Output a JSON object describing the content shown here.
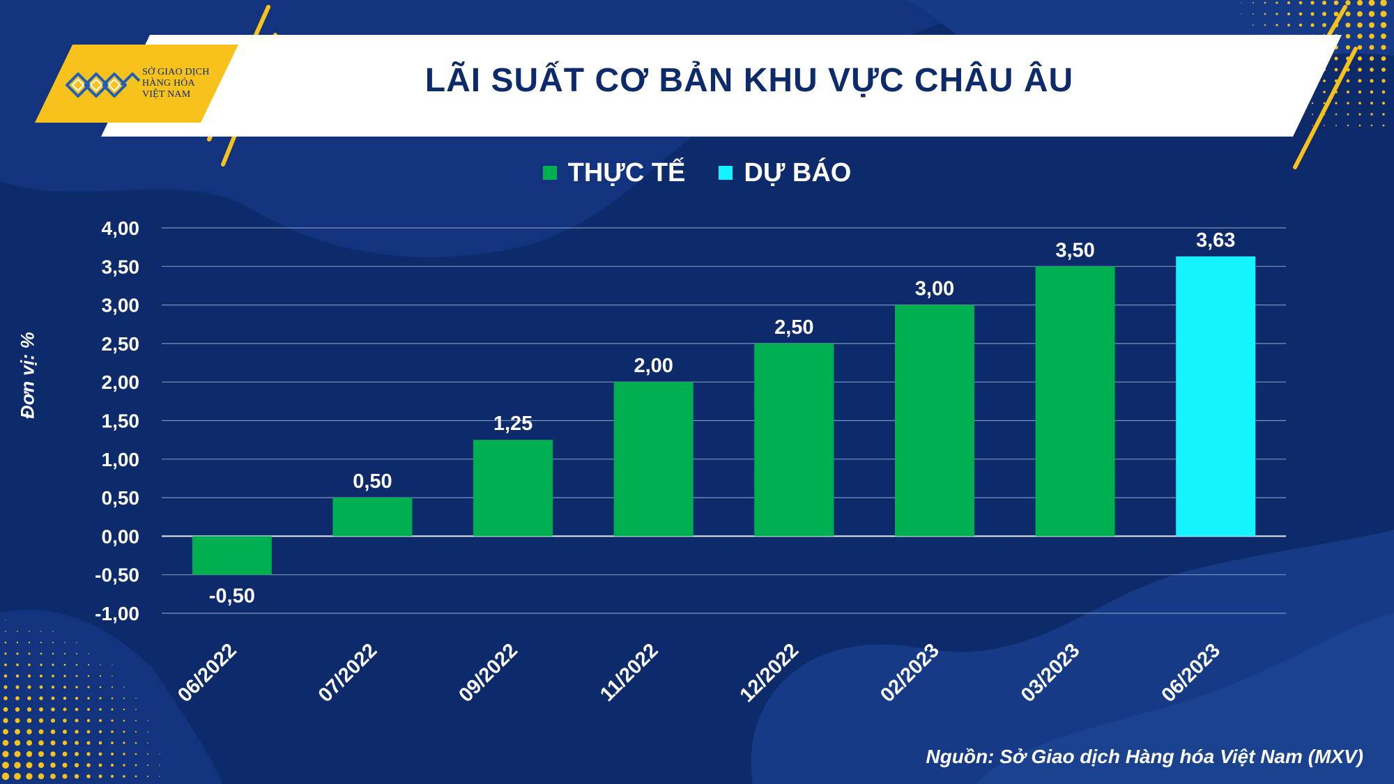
{
  "logo": {
    "line1": "SỞ GIAO DỊCH",
    "line2": "HÀNG HÓA",
    "line3": "VIỆT NAM",
    "icon": "mxv-logo-icon"
  },
  "title": "LÃI SUẤT CƠ BẢN KHU VỰC CHÂU ÂU",
  "ylabel": "Đơn vị: %",
  "source": "Nguồn: Sở Giao dịch Hàng hóa Việt Nam (MXV)",
  "colors": {
    "background": "#0d2a6b",
    "actual": "#00b050",
    "forecast": "#14f1ff",
    "accent": "#f6c21b"
  },
  "chart_data": {
    "type": "bar",
    "categories": [
      "06/2022",
      "07/2022",
      "09/2022",
      "11/2022",
      "12/2022",
      "02/2023",
      "03/2023",
      "06/2023"
    ],
    "series": [
      {
        "name": "THỰC TẾ",
        "values": [
          -0.5,
          0.5,
          1.25,
          2.0,
          2.5,
          3.0,
          3.5,
          null
        ]
      },
      {
        "name": "DỰ BÁO",
        "values": [
          null,
          null,
          null,
          null,
          null,
          null,
          null,
          3.63
        ]
      }
    ],
    "data_labels": [
      "-0,50",
      "0,50",
      "1,25",
      "2,00",
      "2,50",
      "3,00",
      "3,50",
      "3,63"
    ],
    "y_ticks": [
      4.0,
      3.5,
      3.0,
      2.5,
      2.0,
      1.5,
      1.0,
      0.5,
      0.0,
      -0.5,
      -1.0
    ],
    "y_tick_labels": [
      "4,00",
      "3,50",
      "3,00",
      "2,50",
      "2,00",
      "1,50",
      "1,00",
      "0,50",
      "0,00",
      "-0,50",
      "-1,00"
    ],
    "ylim": [
      -1.0,
      4.0
    ],
    "ylabel": "Đơn vị: %",
    "grid": true,
    "legend_position": "top-center"
  }
}
